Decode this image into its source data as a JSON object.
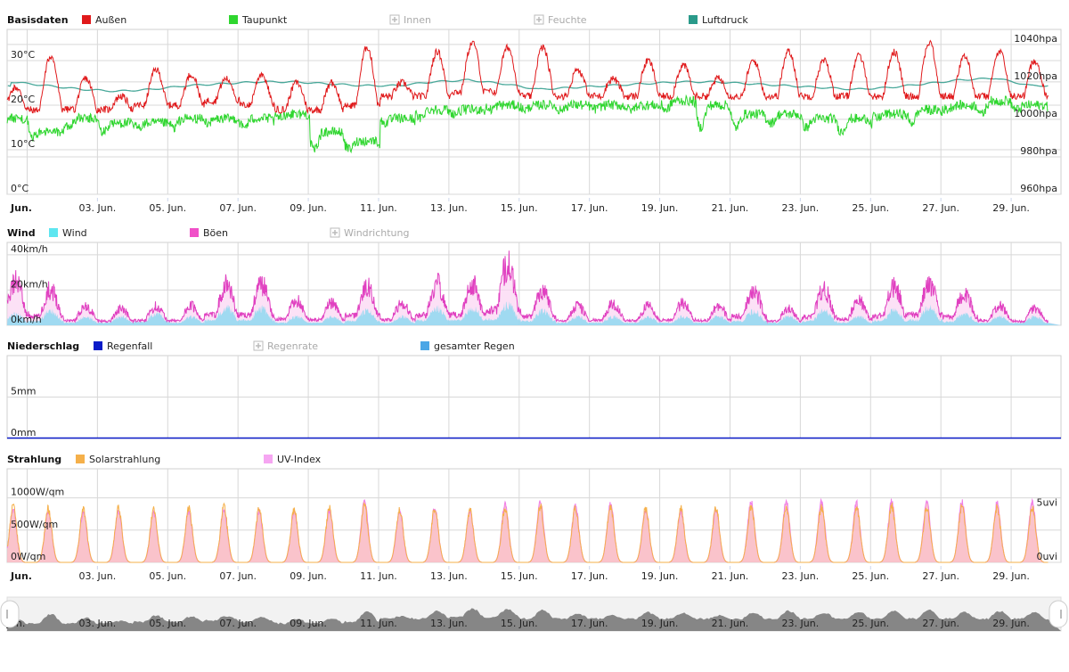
{
  "chart_data": [
    {
      "id": "basisdaten",
      "type": "line",
      "title": "Basisdaten",
      "legend": [
        {
          "name": "Außen",
          "color": "#e0191b",
          "enabled": true
        },
        {
          "name": "Taupunkt",
          "color": "#2fd62f",
          "enabled": true
        },
        {
          "name": "Innen",
          "color": "#bbbbbb",
          "enabled": false
        },
        {
          "name": "Feuchte",
          "color": "#bbbbbb",
          "enabled": false
        },
        {
          "name": "Luftdruck",
          "color": "#2a9a8a",
          "enabled": true
        }
      ],
      "y_left_ticks": [
        "30°C",
        "20°C",
        "10°C",
        "0°C"
      ],
      "y_left_values": [
        30,
        20,
        10,
        0
      ],
      "ylim": [
        0,
        37
      ],
      "y_right_ticks": [
        "1040hpa",
        "1020hpa",
        "1000hpa",
        "980hpa",
        "960hpa"
      ],
      "y_right_values": [
        1040,
        1020,
        1000,
        980,
        960
      ],
      "y_right_lim": [
        960,
        1048
      ],
      "x_ticks": [
        "Jun.",
        "03. Jun.",
        "05. Jun.",
        "07. Jun.",
        "09. Jun.",
        "11. Jun.",
        "13. Jun.",
        "15. Jun.",
        "17. Jun.",
        "19. Jun.",
        "21. Jun.",
        "23. Jun.",
        "25. Jun.",
        "27. Jun.",
        "29. Jun."
      ],
      "days": 30,
      "series": [
        {
          "name": "Außen",
          "color": "#e0191b",
          "daily_max": [
            24,
            31,
            26,
            22,
            28,
            27,
            26,
            27,
            25,
            25,
            33,
            25,
            32,
            34,
            33,
            33,
            28,
            26,
            30,
            29,
            26,
            30,
            32,
            30,
            31,
            32,
            34,
            31,
            32,
            30
          ],
          "daily_min": [
            19,
            19,
            19,
            19,
            20,
            20,
            21,
            20,
            19,
            19,
            20,
            22,
            22,
            23,
            23,
            22,
            22,
            22,
            22,
            22,
            22,
            22,
            22,
            22,
            22,
            22,
            22,
            22,
            22,
            22
          ]
        },
        {
          "name": "Taupunkt",
          "color": "#2fd62f",
          "daily_mean": [
            17,
            14,
            17,
            16,
            16,
            17,
            17,
            17,
            18,
            14,
            12,
            17,
            19,
            19,
            20,
            20,
            20,
            20,
            20,
            21,
            20,
            18,
            18,
            17,
            17,
            18,
            19,
            20,
            21,
            20
          ],
          "daily_low": [
            15,
            13,
            15,
            14,
            15,
            15,
            16,
            15,
            17,
            10,
            10,
            16,
            17,
            18,
            19,
            19,
            19,
            19,
            19,
            19,
            15,
            15,
            16,
            15,
            14,
            17,
            16,
            19,
            18,
            19
          ]
        },
        {
          "name": "Luftdruck",
          "color": "#2a9a8a",
          "daily_mean": [
            1020,
            1018,
            1016,
            1015,
            1016,
            1018,
            1019,
            1020,
            1020,
            1019,
            1018,
            1018,
            1020,
            1021,
            1019,
            1016,
            1017,
            1018,
            1019,
            1020,
            1020,
            1019,
            1018,
            1017,
            1016,
            1017,
            1019,
            1021,
            1022,
            1018
          ]
        }
      ]
    },
    {
      "id": "wind",
      "type": "area",
      "title": "Wind",
      "legend": [
        {
          "name": "Wind",
          "color": "#5ee6f0",
          "enabled": true
        },
        {
          "name": "Böen",
          "color": "#f050c8",
          "enabled": true
        },
        {
          "name": "Windrichtung",
          "color": "#bbbbbb",
          "enabled": false
        }
      ],
      "y_left_ticks": [
        "40km/h",
        "20km/h",
        "0km/h"
      ],
      "y_left_values": [
        40,
        20,
        0
      ],
      "ylim": [
        0,
        47
      ],
      "days": 30,
      "series": [
        {
          "name": "Böen",
          "color": "#e040c0",
          "daily_peak": [
            32,
            26,
            14,
            12,
            14,
            14,
            30,
            30,
            18,
            16,
            28,
            16,
            30,
            30,
            44,
            26,
            14,
            16,
            14,
            16,
            14,
            26,
            12,
            26,
            18,
            28,
            30,
            24,
            14,
            12
          ]
        },
        {
          "name": "Wind",
          "color": "#8fd8f0",
          "daily_peak": [
            8,
            10,
            6,
            6,
            8,
            6,
            12,
            12,
            6,
            6,
            10,
            6,
            12,
            12,
            14,
            10,
            6,
            6,
            6,
            6,
            6,
            10,
            6,
            10,
            6,
            10,
            12,
            8,
            6,
            6
          ]
        }
      ]
    },
    {
      "id": "niederschlag",
      "type": "line",
      "title": "Niederschlag",
      "legend": [
        {
          "name": "Regenfall",
          "color": "#0a1bc8",
          "enabled": true
        },
        {
          "name": "Regenrate",
          "color": "#bbbbbb",
          "enabled": false
        },
        {
          "name": "gesamter Regen",
          "color": "#4aa6e6",
          "enabled": true
        }
      ],
      "y_left_ticks": [
        "5mm",
        "0mm"
      ],
      "y_left_values": [
        5,
        0
      ],
      "ylim": [
        0,
        10
      ],
      "days": 30,
      "series": [
        {
          "name": "Regenfall",
          "color": "#0a1bc8",
          "values": [
            0,
            0
          ]
        }
      ]
    },
    {
      "id": "strahlung",
      "type": "area",
      "title": "Strahlung",
      "legend": [
        {
          "name": "Solarstrahlung",
          "color": "#f5b04a",
          "enabled": true
        },
        {
          "name": "UV-Index",
          "color": "#f6a6f2",
          "enabled": true
        }
      ],
      "y_left_ticks": [
        "1000W/qm",
        "500W/qm",
        "0W/qm"
      ],
      "y_left_values": [
        1000,
        500,
        0
      ],
      "ylim": [
        0,
        1450
      ],
      "y_right_ticks": [
        "5uvi",
        "0uvi"
      ],
      "y_right_values": [
        5,
        0
      ],
      "y_right_lim": [
        0,
        8.7
      ],
      "x_ticks": [
        "Jun.",
        "03. Jun.",
        "05. Jun.",
        "07. Jun.",
        "09. Jun.",
        "11. Jun.",
        "13. Jun.",
        "15. Jun.",
        "17. Jun.",
        "19. Jun.",
        "21. Jun.",
        "23. Jun.",
        "25. Jun.",
        "27. Jun.",
        "29. Jun."
      ],
      "days": 30,
      "series": [
        {
          "name": "Solarstrahlung",
          "color": "#f5b04a",
          "daily_peak": [
            950,
            900,
            880,
            900,
            880,
            900,
            920,
            900,
            880,
            900,
            940,
            900,
            920,
            880,
            920,
            940,
            920,
            940,
            900,
            900,
            900,
            920,
            940,
            920,
            920,
            940,
            920,
            940,
            920,
            900
          ]
        },
        {
          "name": "UV-Index",
          "color": "#f6a6f2",
          "daily_peak": [
            5.2,
            5.0,
            4.9,
            5.0,
            4.9,
            5.0,
            5.1,
            5.0,
            4.9,
            5.0,
            6.0,
            5.0,
            5.4,
            5.1,
            5.8,
            5.9,
            5.6,
            5.8,
            5.1,
            5.0,
            5.1,
            5.9,
            6.0,
            5.9,
            5.8,
            6.0,
            5.9,
            6.0,
            5.8,
            5.9
          ]
        }
      ]
    }
  ],
  "navigator": {
    "x_ticks": [
      "Jun.",
      "03. Jun.",
      "05. Jun.",
      "07. Jun.",
      "09. Jun.",
      "11. Jun.",
      "13. Jun.",
      "15. Jun.",
      "17. Jun.",
      "19. Jun.",
      "21. Jun.",
      "23. Jun.",
      "25. Jun.",
      "27. Jun.",
      "29. Jun."
    ]
  }
}
